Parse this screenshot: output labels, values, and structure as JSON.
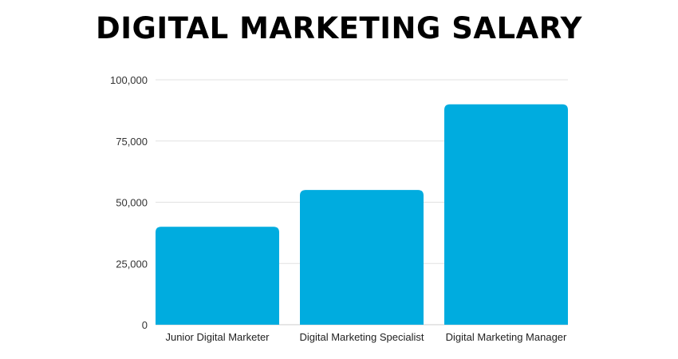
{
  "chart_data": {
    "type": "bar",
    "title": "DIGITAL MARKETING SALARY",
    "categories": [
      "Junior Digital Marketer",
      "Digital Marketing Specialist",
      "Digital Marketing Manager"
    ],
    "values": [
      40000,
      55000,
      90000
    ],
    "yticks": [
      "0",
      "25,000",
      "50,000",
      "75,000",
      "100,000"
    ],
    "ylim": [
      0,
      100000
    ],
    "xlabel": "",
    "ylabel": "",
    "grid": true,
    "bar_color": "#00acdf"
  }
}
